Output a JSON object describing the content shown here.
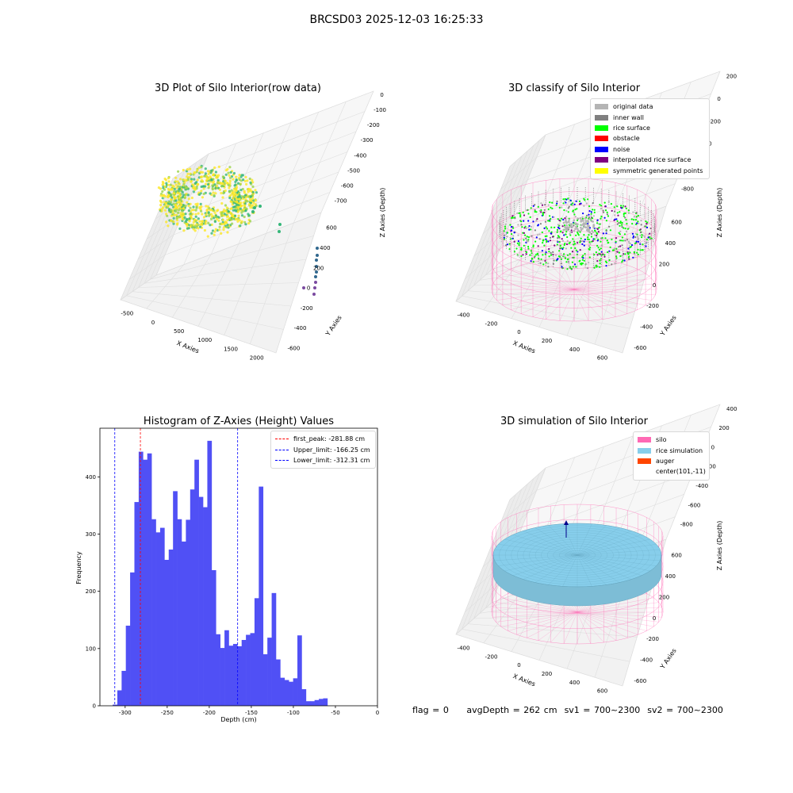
{
  "figure": {
    "suptitle": "BRCSD03 2025-12-03 16:25:33"
  },
  "panels": {
    "raw": {
      "title": "3D Plot of Silo Interior(row data)",
      "xlabel": "X Axies",
      "ylabel": "Y Axies",
      "zlabel": "Z Axies (Depth)",
      "x_ticks": [
        "-500",
        "0",
        "500",
        "1000",
        "1500",
        "2000"
      ],
      "y_ticks": [
        "-600",
        "-400",
        "-200",
        "0",
        "200",
        "400",
        "600"
      ],
      "z_ticks": [
        "0",
        "-100",
        "-200",
        "-300",
        "-400",
        "-500",
        "-600",
        "-700"
      ],
      "colormap": [
        "#440154",
        "#31688e",
        "#35b779",
        "#fde725"
      ]
    },
    "classify": {
      "title": "3D classify of Silo Interior",
      "xlabel": "X Axies",
      "ylabel": "Y Axies",
      "zlabel": "Z Axies (Depth)",
      "x_ticks": [
        "-400",
        "-200",
        "0",
        "200",
        "400",
        "600"
      ],
      "y_ticks": [
        "-600",
        "-400",
        "-200",
        "0",
        "200",
        "400",
        "600"
      ],
      "z_ticks": [
        "200",
        "0",
        "-200",
        "-400",
        "-600",
        "-800"
      ],
      "legend": [
        {
          "label": "original data",
          "color": "#b4b4b4"
        },
        {
          "label": "inner wall",
          "color": "#808080"
        },
        {
          "label": "rice surface",
          "color": "#00ff00"
        },
        {
          "label": "obstacle",
          "color": "#ff0000"
        },
        {
          "label": "noise",
          "color": "#0000ff"
        },
        {
          "label": "interpolated rice surface",
          "color": "#800080"
        },
        {
          "label": "symmetric generated points",
          "color": "#ffff00"
        }
      ],
      "silo_color": "#ff69b4"
    },
    "simulation": {
      "title": "3D simulation of Silo Interior",
      "xlabel": "X Axies",
      "ylabel": "Y Axies",
      "zlabel": "Z Axies (Depth)",
      "x_ticks": [
        "-400",
        "-200",
        "0",
        "200",
        "400",
        "600"
      ],
      "y_ticks": [
        "-600",
        "-400",
        "-200",
        "0",
        "200",
        "400",
        "600"
      ],
      "z_ticks": [
        "400",
        "200",
        "0",
        "-200",
        "-400",
        "-600",
        "-800"
      ],
      "legend": [
        {
          "label": "silo",
          "color": "#ff69b4"
        },
        {
          "label": "rice simulation",
          "color": "#87ceeb"
        },
        {
          "label": "auger",
          "color": "#ff4500"
        },
        {
          "label": "center(101,-11)",
          "color": ""
        }
      ]
    }
  },
  "chart_data": {
    "type": "bar",
    "title": "Histogram of Z-Axies (Height) Values",
    "xlabel": "Depth (cm)",
    "ylabel": "Frequency",
    "xlim": [
      -330,
      0
    ],
    "ylim": [
      0,
      485
    ],
    "x_ticks": [
      -300,
      -250,
      -200,
      -150,
      -100,
      -50,
      0
    ],
    "y_ticks": [
      0,
      100,
      200,
      300,
      400
    ],
    "bar_color": "#5050f5",
    "bins": [
      {
        "start": -314.8,
        "end": -309.3,
        "count": 2
      },
      {
        "start": -309.3,
        "end": -304.2,
        "count": 27
      },
      {
        "start": -304.2,
        "end": -299.2,
        "count": 61
      },
      {
        "start": -299.2,
        "end": -294.1,
        "count": 140
      },
      {
        "start": -294.1,
        "end": -289.0,
        "count": 233
      },
      {
        "start": -289.0,
        "end": -283.9,
        "count": 356
      },
      {
        "start": -283.9,
        "end": -278.8,
        "count": 444
      },
      {
        "start": -278.8,
        "end": -273.7,
        "count": 430
      },
      {
        "start": -273.7,
        "end": -268.6,
        "count": 441
      },
      {
        "start": -268.6,
        "end": -263.5,
        "count": 326
      },
      {
        "start": -263.5,
        "end": -258.4,
        "count": 303
      },
      {
        "start": -258.4,
        "end": -253.3,
        "count": 311
      },
      {
        "start": -253.3,
        "end": -248.2,
        "count": 255
      },
      {
        "start": -248.2,
        "end": -243.1,
        "count": 273
      },
      {
        "start": -243.1,
        "end": -238.0,
        "count": 375
      },
      {
        "start": -238.0,
        "end": -232.9,
        "count": 326
      },
      {
        "start": -232.9,
        "end": -227.8,
        "count": 287
      },
      {
        "start": -227.8,
        "end": -222.7,
        "count": 325
      },
      {
        "start": -222.7,
        "end": -217.6,
        "count": 378
      },
      {
        "start": -217.6,
        "end": -212.5,
        "count": 430
      },
      {
        "start": -212.5,
        "end": -207.4,
        "count": 365
      },
      {
        "start": -207.4,
        "end": -202.3,
        "count": 347
      },
      {
        "start": -202.3,
        "end": -197.2,
        "count": 463
      },
      {
        "start": -197.2,
        "end": -192.1,
        "count": 237
      },
      {
        "start": -192.1,
        "end": -187.0,
        "count": 125
      },
      {
        "start": -187.0,
        "end": -181.9,
        "count": 101
      },
      {
        "start": -181.9,
        "end": -176.8,
        "count": 132
      },
      {
        "start": -176.8,
        "end": -171.7,
        "count": 105
      },
      {
        "start": -171.7,
        "end": -166.6,
        "count": 108
      },
      {
        "start": -166.6,
        "end": -161.5,
        "count": 104
      },
      {
        "start": -161.5,
        "end": -156.4,
        "count": 115
      },
      {
        "start": -156.4,
        "end": -151.3,
        "count": 124
      },
      {
        "start": -151.3,
        "end": -146.2,
        "count": 127
      },
      {
        "start": -146.2,
        "end": -141.1,
        "count": 188
      },
      {
        "start": -141.1,
        "end": -136.0,
        "count": 383
      },
      {
        "start": -136.0,
        "end": -130.9,
        "count": 90
      },
      {
        "start": -130.9,
        "end": -125.8,
        "count": 119
      },
      {
        "start": -125.8,
        "end": -120.7,
        "count": 197
      },
      {
        "start": -120.7,
        "end": -115.6,
        "count": 81
      },
      {
        "start": -115.6,
        "end": -110.5,
        "count": 49
      },
      {
        "start": -110.5,
        "end": -105.4,
        "count": 45
      },
      {
        "start": -105.4,
        "end": -100.3,
        "count": 42
      },
      {
        "start": -100.3,
        "end": -95.2,
        "count": 48
      },
      {
        "start": -95.2,
        "end": -90.1,
        "count": 123
      },
      {
        "start": -90.1,
        "end": -85.0,
        "count": 29
      },
      {
        "start": -85.0,
        "end": -79.9,
        "count": 8
      },
      {
        "start": -79.9,
        "end": -74.8,
        "count": 8
      },
      {
        "start": -74.8,
        "end": -69.7,
        "count": 10
      },
      {
        "start": -69.7,
        "end": -64.6,
        "count": 12
      },
      {
        "start": -64.6,
        "end": -59.5,
        "count": 13
      }
    ],
    "vlines": [
      {
        "label": "first_peak: -281.88 cm",
        "x": -281.88,
        "color": "#ff0000"
      },
      {
        "label": "Upper_limit: -166.25 cm",
        "x": -166.25,
        "color": "#0000ff"
      },
      {
        "label": "Lower_limit: -312.31 cm",
        "x": -312.31,
        "color": "#0000ff"
      }
    ]
  },
  "status": {
    "flag": "flag = 0",
    "avg_depth": "avgDepth = 262 cm",
    "sv1": "sv1 = 700~2300",
    "sv2": "sv2 = 700~2300"
  }
}
